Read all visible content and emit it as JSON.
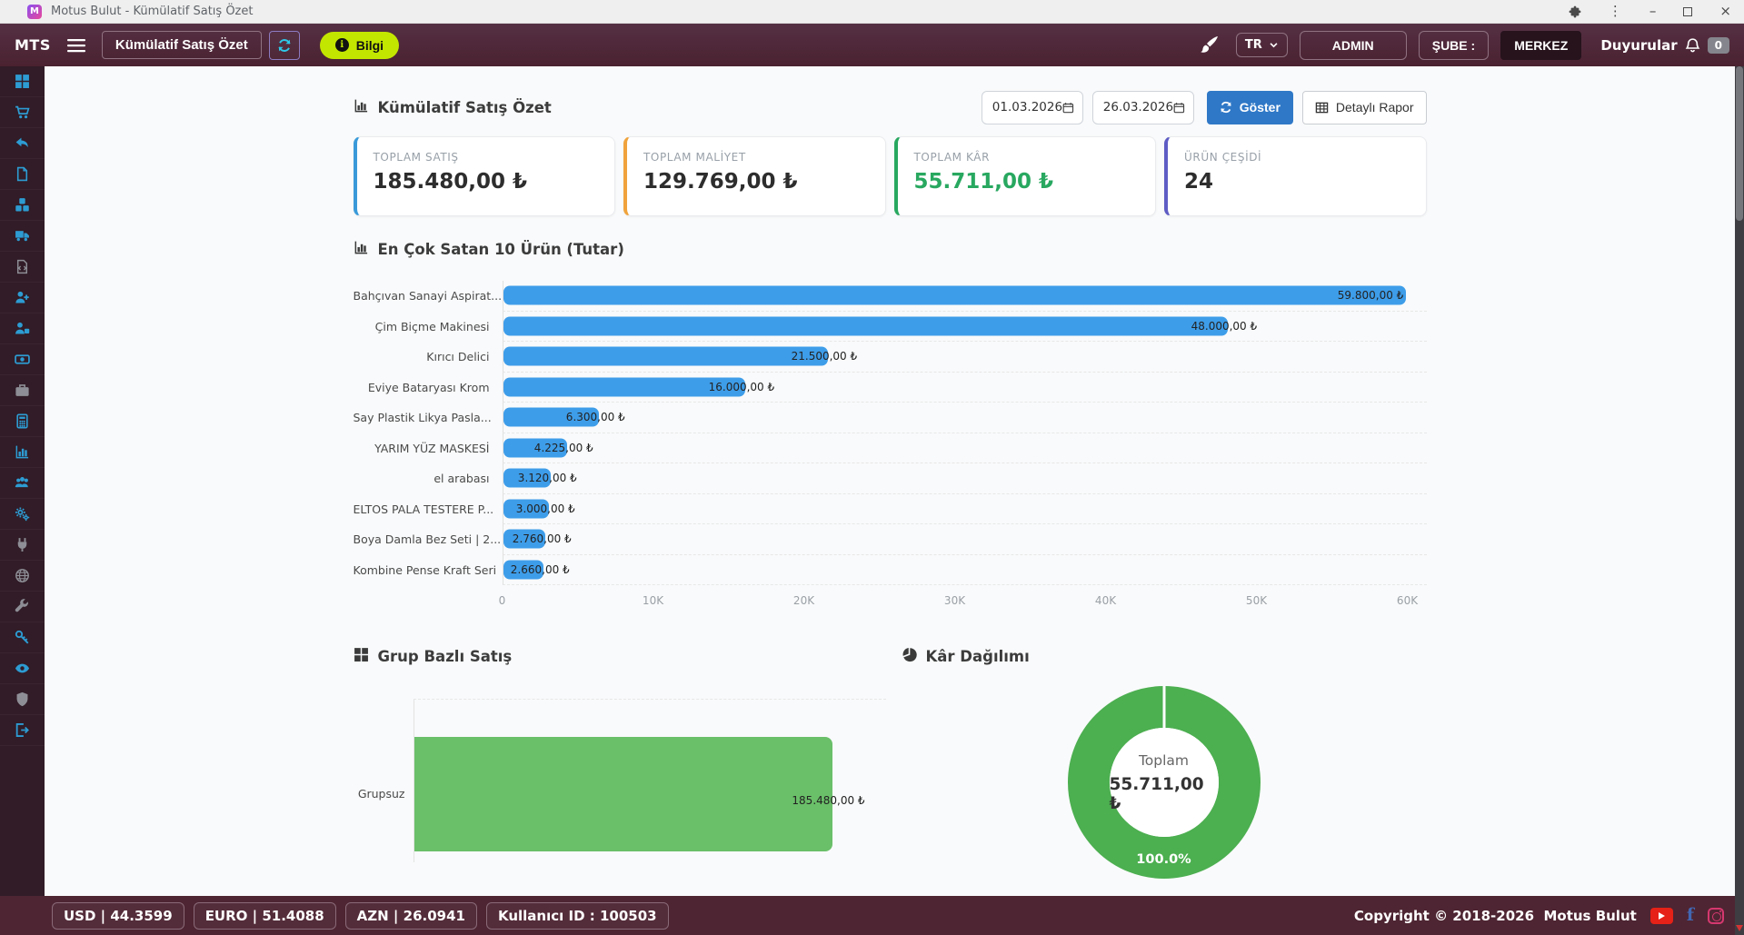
{
  "window": {
    "title": "Motus Bulut - Kümülatif Satış Özet",
    "app_initial": "M"
  },
  "navbar": {
    "brand": "MTS",
    "page_button": "Kümülatif Satış Özet",
    "info_button": "Bilgi",
    "lang": "TR",
    "admin": "ADMIN",
    "sube": "ŞUBE :",
    "merkez": "MERKEZ",
    "announcements": "Duyurular",
    "announcements_count": "0"
  },
  "sidebar": {
    "items": [
      {
        "icon": "dashboard",
        "color": "#2d9cd3"
      },
      {
        "icon": "cart",
        "color": "#2d9cd3"
      },
      {
        "icon": "undo",
        "color": "#2d9cd3"
      },
      {
        "icon": "document",
        "color": "#2d9cd3"
      },
      {
        "icon": "cubes",
        "color": "#2d9cd3"
      },
      {
        "icon": "truck",
        "color": "#2d9cd3"
      },
      {
        "icon": "file-code",
        "color": "#8e8e96"
      },
      {
        "icon": "user-plus",
        "color": "#2d9cd3"
      },
      {
        "icon": "user-puzzle",
        "color": "#2d9cd3"
      },
      {
        "icon": "banknote",
        "color": "#2d9cd3"
      },
      {
        "icon": "briefcase",
        "color": "#8e8e96"
      },
      {
        "icon": "calculator",
        "color": "#2d9cd3"
      },
      {
        "icon": "bar-chart",
        "color": "#2d9cd3"
      },
      {
        "icon": "users",
        "color": "#2d9cd3"
      },
      {
        "icon": "gears",
        "color": "#2d9cd3"
      },
      {
        "icon": "plug",
        "color": "#8e8e96"
      },
      {
        "icon": "globe",
        "color": "#8e8e96"
      },
      {
        "icon": "wrench",
        "color": "#8e8e96"
      },
      {
        "icon": "key",
        "color": "#2d9cd3"
      },
      {
        "icon": "eye",
        "color": "#2d9cd3"
      },
      {
        "icon": "shield",
        "color": "#8e8e96"
      },
      {
        "icon": "logout",
        "color": "#2d9cd3"
      }
    ]
  },
  "report_header": {
    "title": "Kümülatif Satış Özet",
    "date_from": "01.03.2026",
    "date_to": "26.03.2026",
    "show_button": "Göster",
    "detail_button": "Detaylı Rapor"
  },
  "stat_cards": [
    {
      "label": "TOPLAM SATIŞ",
      "value": "185.480,00 ₺",
      "accent": "#3a9ad9",
      "value_color": "#2d2d2d"
    },
    {
      "label": "TOPLAM MALİYET",
      "value": "129.769,00 ₺",
      "accent": "#f0a33c",
      "value_color": "#2d2d2d"
    },
    {
      "label": "TOPLAM KÂR",
      "value": "55.711,00 ₺",
      "accent": "#28a860",
      "value_color": "#28a860"
    },
    {
      "label": "ÜRÜN ÇEŞİDİ",
      "value": "24",
      "accent": "#5e5cc4",
      "value_color": "#2d2d2d"
    }
  ],
  "chart_data": [
    {
      "type": "bar",
      "orientation": "horizontal",
      "title": "En Çok Satan 10 Ürün (Tutar)",
      "categories": [
        "Bahçıvan Sanayi Aspirat...",
        "Çim Biçme Makinesi",
        "Kırıcı Delici",
        "Eviye Bataryası Krom",
        "Say Plastik Likya Pasla...",
        "YARIM YÜZ MASKESİ",
        "el arabası",
        "ELTOS PALA TESTERE P...",
        "Boya Damla Bez Seti | 2...",
        "Kombine Pense Kraft Seri"
      ],
      "values": [
        59800,
        48000,
        21500,
        16000,
        6300,
        4225,
        3120,
        3000,
        2760,
        2660
      ],
      "value_labels": [
        "59.800,00 ₺",
        "48.000,00 ₺",
        "21.500,00 ₺",
        "16.000,00 ₺",
        "6.300,00 ₺",
        "4.225,00 ₺",
        "3.120,00 ₺",
        "3.000,00 ₺",
        "2.760,00 ₺",
        "2.660,00 ₺"
      ],
      "xlim": [
        0,
        60000
      ],
      "x_ticks": [
        "0",
        "10K",
        "20K",
        "30K",
        "40K",
        "50K",
        "60K"
      ],
      "bar_color": "#3e9de9",
      "grid": "dashed-row-separators"
    },
    {
      "type": "bar",
      "orientation": "horizontal",
      "title": "Grup Bazlı Satış",
      "categories": [
        "Grupsuz"
      ],
      "values": [
        185480
      ],
      "value_labels": [
        "185.480,00 ₺"
      ],
      "bar_color": "#6abf69"
    },
    {
      "type": "pie",
      "title": "Kâr Dağılımı",
      "center_label": "Toplam",
      "center_value": "55.711,00 ₺",
      "slices": [
        {
          "label": "100.0%",
          "value": 100,
          "color": "#4caf50"
        }
      ]
    }
  ],
  "footer": {
    "currencies": [
      "USD | 44.3599",
      "EURO | 51.4088",
      "AZN | 26.0941"
    ],
    "user_id": "Kullanıcı ID : 100503",
    "copyright_prefix": "Copyright © 2018-2026",
    "copyright_brand": "Motus Bulut"
  }
}
